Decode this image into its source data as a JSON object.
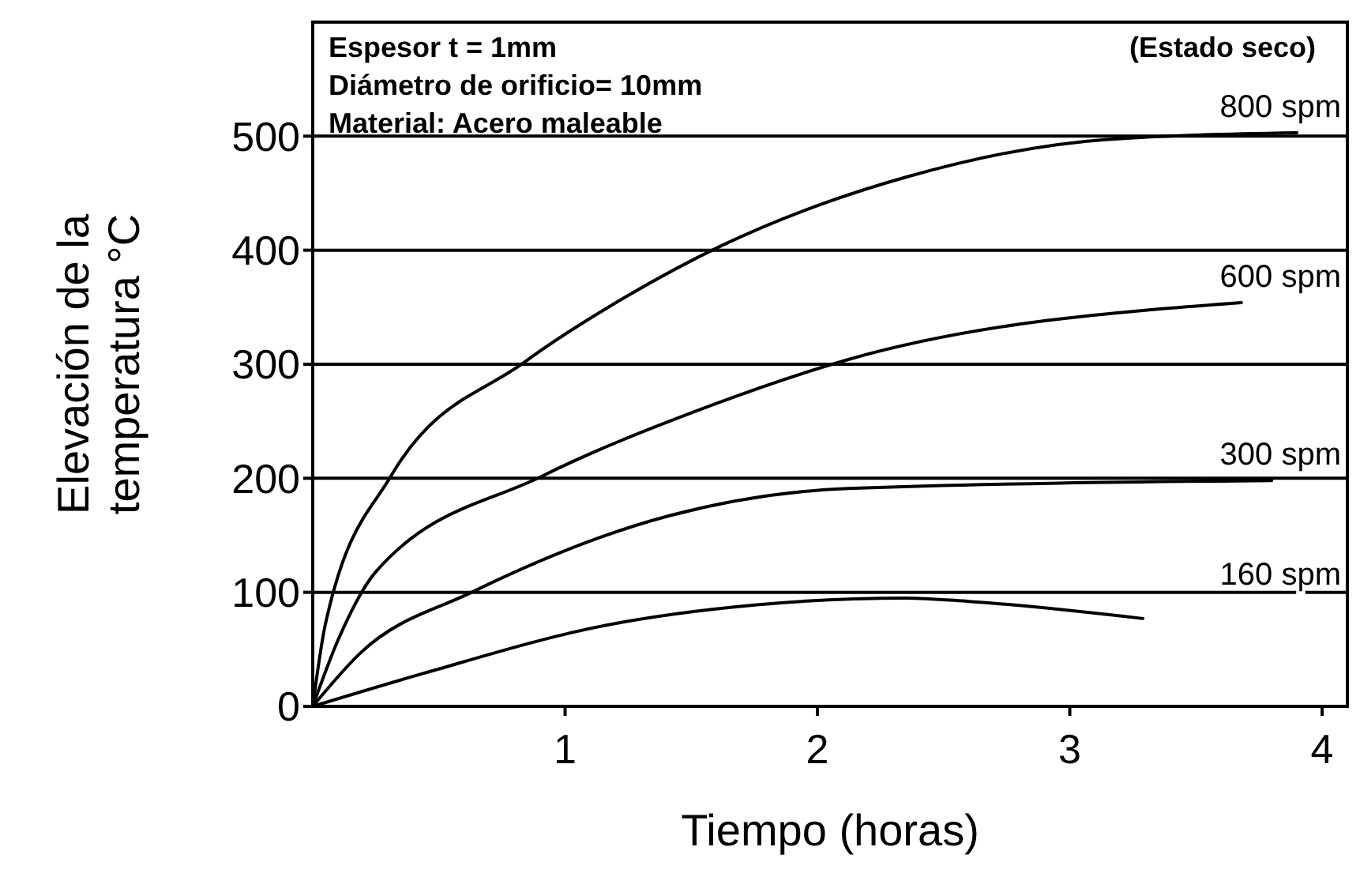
{
  "chart_data": {
    "type": "line",
    "xlabel": "Tiempo (horas)",
    "ylabel": "Elevación de la temperatura °C",
    "xlim": [
      0,
      4.1
    ],
    "xticks": [
      1,
      2,
      3,
      4
    ],
    "ylim": [
      0,
      600
    ],
    "yticks": [
      0,
      100,
      200,
      300,
      400,
      500
    ],
    "grid": "y",
    "marker": "none",
    "line_style": "solid",
    "annotations": [
      "Espesor t = 1mm",
      "Diámetro de orificio= 10mm",
      "Material: Acero maleable",
      "(Estado seco)"
    ],
    "series": [
      {
        "name": "800 spm",
        "color": "#000000",
        "x": [
          0,
          0.05,
          0.31,
          0.84,
          1.24,
          1.62,
          2.35,
          3.14,
          3.9
        ],
        "values": [
          0,
          72,
          202,
          302,
          359,
          404,
          464,
          497,
          503
        ]
      },
      {
        "name": "600 spm",
        "color": "#000000",
        "x": [
          0,
          0.1,
          0.25,
          0.91,
          1.52,
          2.12,
          3.68
        ],
        "values": [
          0,
          58,
          118,
          202,
          259,
          304,
          354
        ]
      },
      {
        "name": "300 spm",
        "color": "#000000",
        "x": [
          0,
          0.19,
          0.63,
          1.41,
          2.12,
          3.8
        ],
        "values": [
          0,
          47,
          100,
          167,
          191,
          198
        ]
      },
      {
        "name": "160 spm",
        "color": "#000000",
        "x": [
          0,
          0.44,
          1.16,
          1.76,
          2.35,
          2.6,
          3.29
        ],
        "values": [
          0,
          29,
          71,
          89,
          95,
          92,
          77
        ]
      }
    ]
  }
}
